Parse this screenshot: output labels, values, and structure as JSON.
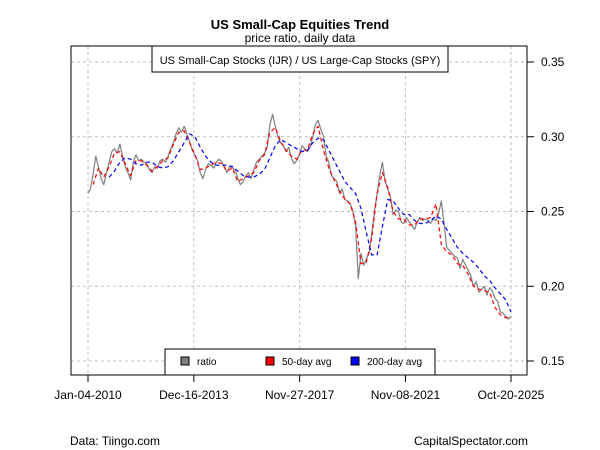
{
  "chart_data": {
    "type": "line",
    "title": "US Small-Cap Equities Trend",
    "subtitle": "price ratio, daily data",
    "series_label": "US Small-Cap Stocks (IJR) / US Large-Cap Stocks (SPY)",
    "xlabel": "",
    "ylabel": "",
    "ylim": [
      0.14,
      0.36
    ],
    "yticks": [
      0.15,
      0.2,
      0.25,
      0.3,
      0.35
    ],
    "ytick_labels": [
      "0.15",
      "0.20",
      "0.25",
      "0.30",
      "0.35"
    ],
    "xlim": [
      2009.65,
      2026.4
    ],
    "xticks": [
      2010.01,
      2013.96,
      2017.91,
      2021.86,
      2025.8
    ],
    "xtick_labels": [
      "Jan-04-2010",
      "Dec-16-2013",
      "Nov-27-2017",
      "Nov-08-2021",
      "Oct-20-2025"
    ],
    "grid": true,
    "legend": {
      "placement": "bottom-center",
      "entries": [
        {
          "label": "ratio",
          "color": "#808080"
        },
        {
          "label": "50-day avg",
          "color": "#ff0000"
        },
        {
          "label": "200-day avg",
          "color": "#0000ff"
        }
      ]
    },
    "series": [
      {
        "name": "ratio",
        "color": "#808080",
        "x": [
          2010.0,
          2010.1,
          2010.2,
          2010.3,
          2010.4,
          2010.5,
          2010.6,
          2010.7,
          2010.8,
          2010.9,
          2011.0,
          2011.1,
          2011.2,
          2011.3,
          2011.4,
          2011.5,
          2011.6,
          2011.7,
          2011.8,
          2011.9,
          2012.0,
          2012.1,
          2012.2,
          2012.3,
          2012.4,
          2012.5,
          2012.6,
          2012.7,
          2012.8,
          2012.9,
          2013.0,
          2013.1,
          2013.2,
          2013.3,
          2013.4,
          2013.5,
          2013.6,
          2013.7,
          2013.8,
          2013.9,
          2014.0,
          2014.1,
          2014.2,
          2014.3,
          2014.4,
          2014.5,
          2014.6,
          2014.7,
          2014.8,
          2014.9,
          2015.0,
          2015.1,
          2015.2,
          2015.3,
          2015.4,
          2015.5,
          2015.6,
          2015.7,
          2015.8,
          2015.9,
          2016.0,
          2016.1,
          2016.2,
          2016.3,
          2016.4,
          2016.5,
          2016.6,
          2016.7,
          2016.8,
          2016.9,
          2017.0,
          2017.1,
          2017.2,
          2017.3,
          2017.4,
          2017.5,
          2017.6,
          2017.7,
          2017.8,
          2017.9,
          2018.0,
          2018.1,
          2018.2,
          2018.3,
          2018.4,
          2018.5,
          2018.6,
          2018.7,
          2018.8,
          2018.9,
          2019.0,
          2019.1,
          2019.2,
          2019.3,
          2019.4,
          2019.5,
          2019.6,
          2019.7,
          2019.8,
          2019.9,
          2020.0,
          2020.1,
          2020.2,
          2020.3,
          2020.4,
          2020.5,
          2020.6,
          2020.7,
          2020.8,
          2020.9,
          2021.0,
          2021.1,
          2021.2,
          2021.3,
          2021.4,
          2021.5,
          2021.6,
          2021.7,
          2021.8,
          2021.9,
          2022.0,
          2022.1,
          2022.2,
          2022.3,
          2022.4,
          2022.5,
          2022.6,
          2022.7,
          2022.8,
          2022.9,
          2023.0,
          2023.1,
          2023.2,
          2023.3,
          2023.4,
          2023.5,
          2023.6,
          2023.7,
          2023.8,
          2023.9,
          2024.0,
          2024.1,
          2024.2,
          2024.3,
          2024.4,
          2024.5,
          2024.6,
          2024.7,
          2024.8,
          2024.9,
          2025.0,
          2025.1,
          2025.2,
          2025.3,
          2025.4,
          2025.5,
          2025.6,
          2025.7,
          2025.8
        ],
        "values": [
          0.262,
          0.265,
          0.275,
          0.287,
          0.28,
          0.272,
          0.268,
          0.276,
          0.283,
          0.29,
          0.292,
          0.289,
          0.295,
          0.287,
          0.28,
          0.276,
          0.271,
          0.283,
          0.288,
          0.284,
          0.285,
          0.283,
          0.282,
          0.278,
          0.276,
          0.28,
          0.279,
          0.284,
          0.285,
          0.283,
          0.287,
          0.292,
          0.296,
          0.302,
          0.306,
          0.303,
          0.307,
          0.302,
          0.297,
          0.291,
          0.288,
          0.284,
          0.276,
          0.272,
          0.278,
          0.282,
          0.281,
          0.279,
          0.283,
          0.285,
          0.283,
          0.28,
          0.276,
          0.28,
          0.279,
          0.278,
          0.272,
          0.268,
          0.27,
          0.274,
          0.276,
          0.272,
          0.278,
          0.283,
          0.285,
          0.287,
          0.289,
          0.293,
          0.308,
          0.315,
          0.307,
          0.3,
          0.296,
          0.294,
          0.29,
          0.293,
          0.286,
          0.282,
          0.284,
          0.288,
          0.294,
          0.292,
          0.29,
          0.293,
          0.3,
          0.308,
          0.311,
          0.305,
          0.3,
          0.287,
          0.283,
          0.274,
          0.272,
          0.27,
          0.262,
          0.265,
          0.258,
          0.257,
          0.255,
          0.25,
          0.24,
          0.205,
          0.222,
          0.214,
          0.218,
          0.222,
          0.235,
          0.25,
          0.262,
          0.274,
          0.283,
          0.27,
          0.265,
          0.26,
          0.248,
          0.251,
          0.25,
          0.243,
          0.242,
          0.246,
          0.243,
          0.241,
          0.238,
          0.243,
          0.246,
          0.244,
          0.245,
          0.244,
          0.242,
          0.245,
          0.244,
          0.249,
          0.257,
          0.242,
          0.226,
          0.224,
          0.222,
          0.22,
          0.219,
          0.212,
          0.218,
          0.214,
          0.211,
          0.207,
          0.2,
          0.203,
          0.196,
          0.198,
          0.2,
          0.194,
          0.199,
          0.197,
          0.192,
          0.19,
          0.183,
          0.182,
          0.18,
          0.178,
          0.18
        ]
      },
      {
        "name": "50-day avg",
        "color": "#ff0000",
        "x": [
          2010.2,
          2010.4,
          2010.6,
          2010.8,
          2011.0,
          2011.2,
          2011.4,
          2011.6,
          2011.8,
          2012.0,
          2012.2,
          2012.4,
          2012.6,
          2012.8,
          2013.0,
          2013.2,
          2013.4,
          2013.6,
          2013.8,
          2014.0,
          2014.2,
          2014.4,
          2014.6,
          2014.8,
          2015.0,
          2015.2,
          2015.4,
          2015.6,
          2015.8,
          2016.0,
          2016.2,
          2016.4,
          2016.6,
          2016.8,
          2017.0,
          2017.2,
          2017.4,
          2017.6,
          2017.8,
          2018.0,
          2018.2,
          2018.4,
          2018.6,
          2018.8,
          2019.0,
          2019.2,
          2019.4,
          2019.6,
          2019.8,
          2020.0,
          2020.2,
          2020.4,
          2020.6,
          2020.8,
          2021.0,
          2021.2,
          2021.4,
          2021.6,
          2021.8,
          2022.0,
          2022.2,
          2022.4,
          2022.6,
          2022.8,
          2023.0,
          2023.2,
          2023.4,
          2023.6,
          2023.8,
          2024.0,
          2024.2,
          2024.4,
          2024.6,
          2024.8,
          2025.0,
          2025.2,
          2025.4,
          2025.6,
          2025.8
        ],
        "values": [
          0.268,
          0.279,
          0.273,
          0.28,
          0.289,
          0.29,
          0.282,
          0.274,
          0.284,
          0.284,
          0.281,
          0.277,
          0.28,
          0.284,
          0.286,
          0.295,
          0.303,
          0.304,
          0.296,
          0.288,
          0.278,
          0.279,
          0.281,
          0.283,
          0.282,
          0.277,
          0.279,
          0.27,
          0.272,
          0.274,
          0.276,
          0.284,
          0.288,
          0.303,
          0.306,
          0.297,
          0.291,
          0.287,
          0.285,
          0.291,
          0.291,
          0.302,
          0.307,
          0.291,
          0.279,
          0.271,
          0.264,
          0.258,
          0.255,
          0.243,
          0.215,
          0.216,
          0.232,
          0.262,
          0.276,
          0.266,
          0.25,
          0.245,
          0.245,
          0.241,
          0.241,
          0.245,
          0.245,
          0.246,
          0.255,
          0.228,
          0.223,
          0.221,
          0.215,
          0.214,
          0.208,
          0.2,
          0.198,
          0.197,
          0.196,
          0.186,
          0.181,
          0.179,
          0.179
        ]
      },
      {
        "name": "200-day avg",
        "color": "#0000ff",
        "x": [
          2010.8,
          2011.0,
          2011.2,
          2011.4,
          2011.6,
          2011.8,
          2012.0,
          2012.2,
          2012.4,
          2012.6,
          2012.8,
          2013.0,
          2013.2,
          2013.4,
          2013.6,
          2013.8,
          2014.0,
          2014.2,
          2014.4,
          2014.6,
          2014.8,
          2015.0,
          2015.2,
          2015.4,
          2015.6,
          2015.8,
          2016.0,
          2016.2,
          2016.4,
          2016.6,
          2016.8,
          2017.0,
          2017.2,
          2017.4,
          2017.6,
          2017.8,
          2018.0,
          2018.2,
          2018.4,
          2018.6,
          2018.8,
          2019.0,
          2019.2,
          2019.4,
          2019.6,
          2019.8,
          2020.0,
          2020.2,
          2020.4,
          2020.6,
          2020.8,
          2021.0,
          2021.2,
          2021.4,
          2021.6,
          2021.8,
          2022.0,
          2022.2,
          2022.4,
          2022.6,
          2022.8,
          2023.0,
          2023.2,
          2023.4,
          2023.6,
          2023.8,
          2024.0,
          2024.2,
          2024.4,
          2024.6,
          2024.8,
          2025.0,
          2025.2,
          2025.4,
          2025.6,
          2025.8
        ],
        "values": [
          0.273,
          0.277,
          0.283,
          0.286,
          0.285,
          0.282,
          0.281,
          0.283,
          0.283,
          0.28,
          0.279,
          0.28,
          0.284,
          0.29,
          0.296,
          0.302,
          0.3,
          0.293,
          0.287,
          0.283,
          0.281,
          0.281,
          0.281,
          0.28,
          0.277,
          0.274,
          0.273,
          0.273,
          0.275,
          0.278,
          0.286,
          0.294,
          0.298,
          0.296,
          0.294,
          0.292,
          0.29,
          0.291,
          0.296,
          0.299,
          0.298,
          0.291,
          0.284,
          0.277,
          0.27,
          0.266,
          0.262,
          0.252,
          0.236,
          0.221,
          0.221,
          0.24,
          0.258,
          0.257,
          0.252,
          0.248,
          0.248,
          0.244,
          0.242,
          0.242,
          0.244,
          0.247,
          0.245,
          0.238,
          0.232,
          0.226,
          0.222,
          0.219,
          0.216,
          0.212,
          0.207,
          0.204,
          0.199,
          0.195,
          0.191,
          0.183
        ]
      }
    ]
  },
  "footer": {
    "source": "Data: Tiingo.com",
    "credit": "CapitalSpectator.com"
  }
}
